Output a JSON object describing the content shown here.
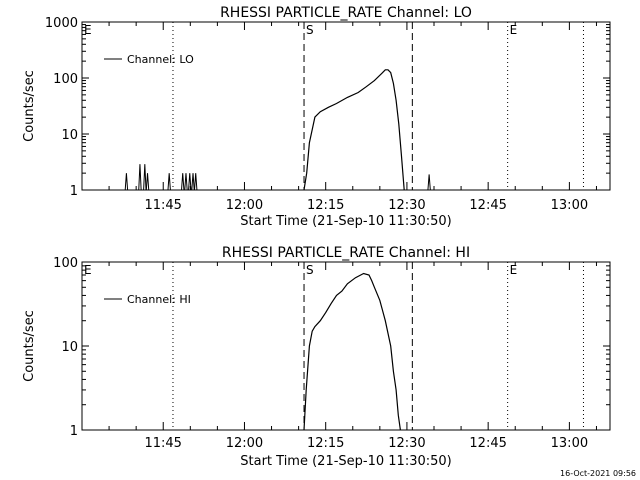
{
  "footer_timestamp": "16-Oct-2021 09:56",
  "chart_data": [
    {
      "type": "line",
      "title": "RHESSI PARTICLE_RATE Channel: LO",
      "xlabel": "Start Time (21-Sep-10 11:30:50)",
      "ylabel": "Counts/sec",
      "y_scale": "log",
      "ylim": [
        1,
        1000
      ],
      "y_ticks": [
        "1",
        "10",
        "100",
        "1000"
      ],
      "x_ticks": [
        "11:45",
        "12:00",
        "12:15",
        "12:30",
        "12:45",
        "13:00"
      ],
      "x_tick_values": [
        15.0,
        30.0,
        45.0,
        60.0,
        75.0,
        90.0
      ],
      "legend": [
        "Channel: LO"
      ],
      "legend_position": "top-left",
      "markers": [
        {
          "label": "E",
          "x": 0.0,
          "style": "none"
        },
        {
          "label": "S",
          "x": 41.0,
          "style": "dashed"
        },
        {
          "label": "",
          "x": 16.8,
          "style": "dotted"
        },
        {
          "label": "",
          "x": 61.0,
          "style": "dashed"
        },
        {
          "label": "E",
          "x": 78.6,
          "style": "dotted"
        },
        {
          "label": "",
          "x": 92.6,
          "style": "dotted"
        }
      ],
      "series": [
        {
          "name": "Channel: LO",
          "bursts": [
            {
              "x": 8.2,
              "y": 2.0
            },
            {
              "x": 10.7,
              "y": 2.9
            },
            {
              "x": 11.6,
              "y": 2.9
            },
            {
              "x": 12.1,
              "y": 2.0
            },
            {
              "x": 16.1,
              "y": 2.0
            },
            {
              "x": 18.6,
              "y": 2.0
            },
            {
              "x": 19.2,
              "y": 2.0
            },
            {
              "x": 19.9,
              "y": 2.0
            },
            {
              "x": 20.5,
              "y": 2.0
            },
            {
              "x": 21.0,
              "y": 2.0
            },
            {
              "x": 64.1,
              "y": 1.9
            }
          ],
          "x": [
            41.0,
            41.5,
            42.0,
            43.0,
            44.0,
            45.5,
            47.0,
            49.0,
            51.0,
            52.5,
            54.0,
            55.5,
            56.0,
            56.5,
            57.0,
            57.5,
            58.0,
            58.5,
            59.0,
            59.5
          ],
          "y": [
            1.0,
            2.0,
            7.0,
            20.0,
            25.0,
            30.0,
            35.0,
            45.0,
            55.0,
            70.0,
            90.0,
            125.0,
            140.0,
            140.0,
            125.0,
            80.0,
            40.0,
            15.0,
            4.0,
            1.0
          ]
        }
      ]
    },
    {
      "type": "line",
      "title": "RHESSI PARTICLE_RATE Channel: HI",
      "xlabel": "Start Time (21-Sep-10 11:30:50)",
      "ylabel": "Counts/sec",
      "y_scale": "log",
      "ylim": [
        1,
        100
      ],
      "y_ticks": [
        "1",
        "10",
        "100"
      ],
      "x_ticks": [
        "11:45",
        "12:00",
        "12:15",
        "12:30",
        "12:45",
        "13:00"
      ],
      "x_tick_values": [
        15.0,
        30.0,
        45.0,
        60.0,
        75.0,
        90.0
      ],
      "legend": [
        "Channel: HI"
      ],
      "legend_position": "top-left",
      "markers": [
        {
          "label": "E",
          "x": 0.0,
          "style": "none"
        },
        {
          "label": "S",
          "x": 41.0,
          "style": "dashed"
        },
        {
          "label": "",
          "x": 16.8,
          "style": "dotted"
        },
        {
          "label": "",
          "x": 61.0,
          "style": "dashed"
        },
        {
          "label": "E",
          "x": 78.6,
          "style": "dotted"
        },
        {
          "label": "",
          "x": 92.6,
          "style": "dotted"
        }
      ],
      "series": [
        {
          "name": "Channel: HI",
          "x": [
            41.0,
            41.4,
            42.0,
            42.5,
            43.0,
            44.0,
            45.0,
            46.0,
            47.0,
            48.0,
            49.0,
            50.5,
            52.0,
            53.0,
            53.5,
            54.0,
            55.0,
            56.0,
            57.0,
            57.5,
            58.0,
            58.4,
            58.8
          ],
          "y": [
            1.0,
            3.0,
            10.0,
            15.0,
            17.0,
            20.0,
            25.0,
            32.0,
            40.0,
            45.0,
            55.0,
            65.0,
            73.0,
            70.0,
            60.0,
            50.0,
            35.0,
            20.0,
            10.0,
            5.0,
            3.0,
            1.5,
            1.0
          ]
        }
      ]
    }
  ]
}
